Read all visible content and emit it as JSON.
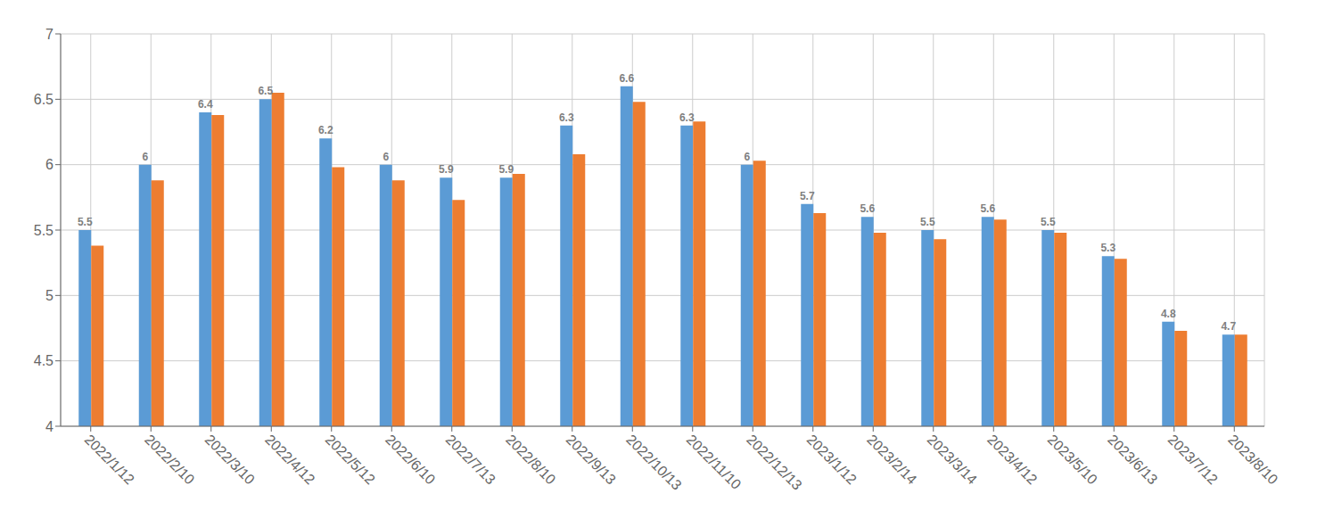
{
  "chart_data": {
    "type": "bar",
    "categories": [
      "2022/1/12",
      "2022/2/10",
      "2022/3/10",
      "2022/4/12",
      "2022/5/12",
      "2022/6/10",
      "2022/7/13",
      "2022/8/10",
      "2022/9/13",
      "2022/10/13",
      "2022/11/10",
      "2022/12/13",
      "2023/1/12",
      "2023/2/14",
      "2023/3/14",
      "2023/4/12",
      "2023/5/10",
      "2023/6/13",
      "2023/7/12",
      "2023/8/10"
    ],
    "series": [
      {
        "color": "#5B9BD5",
        "data_labels": true,
        "values": [
          5.5,
          6.0,
          6.4,
          6.5,
          6.2,
          6.0,
          5.9,
          5.9,
          6.3,
          6.6,
          6.3,
          6.0,
          5.7,
          5.6,
          5.5,
          5.6,
          5.5,
          5.3,
          4.8,
          4.7
        ]
      },
      {
        "color": "#ED7D31",
        "values": [
          5.38,
          5.88,
          6.38,
          6.55,
          5.98,
          5.88,
          5.73,
          5.93,
          6.08,
          6.48,
          6.33,
          6.03,
          5.63,
          5.48,
          5.43,
          5.58,
          5.48,
          5.28,
          4.73,
          4.7
        ]
      }
    ],
    "ylim": [
      4.0,
      7.0
    ],
    "yticks": [
      4.0,
      4.5,
      5.0,
      5.5,
      6.0,
      6.5,
      7.0
    ],
    "grid": true
  }
}
